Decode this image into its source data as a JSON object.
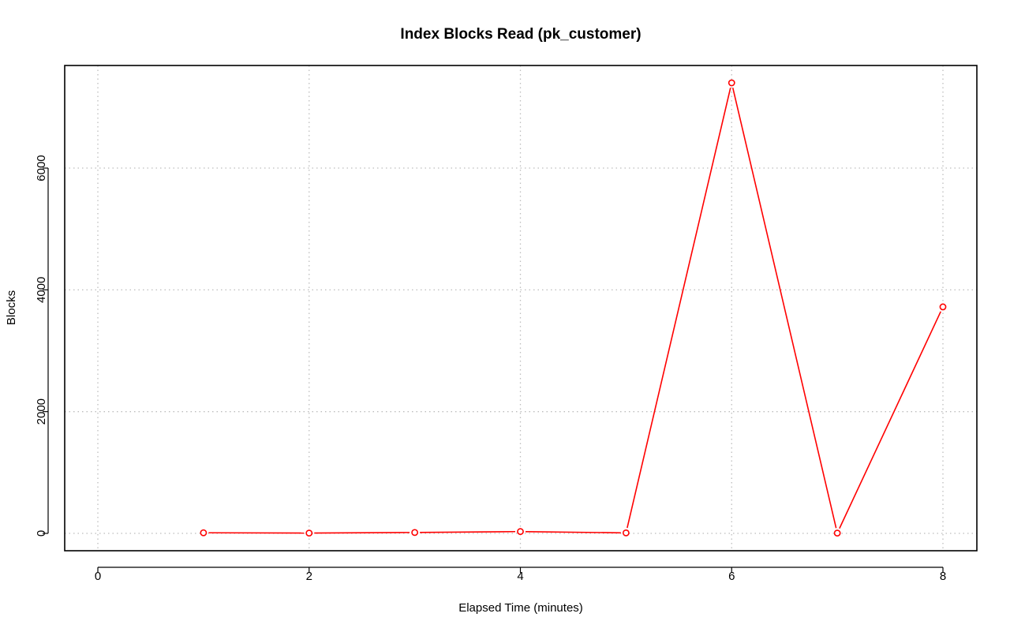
{
  "chart_data": {
    "type": "line",
    "title": "Index Blocks Read (pk_customer)",
    "xlabel": "Elapsed Time (minutes)",
    "ylabel": "Blocks",
    "xlim": [
      0,
      8
    ],
    "ylim": [
      0,
      7400
    ],
    "xticks": [
      0,
      2,
      4,
      6,
      8
    ],
    "yticks": [
      0,
      2000,
      4000,
      6000
    ],
    "grid": true,
    "series": [
      {
        "color": "#ff0000",
        "x": [
          1,
          2,
          3,
          4,
          5,
          6,
          7,
          8
        ],
        "y": [
          10,
          5,
          15,
          30,
          8,
          7400,
          5,
          3720
        ]
      }
    ]
  }
}
